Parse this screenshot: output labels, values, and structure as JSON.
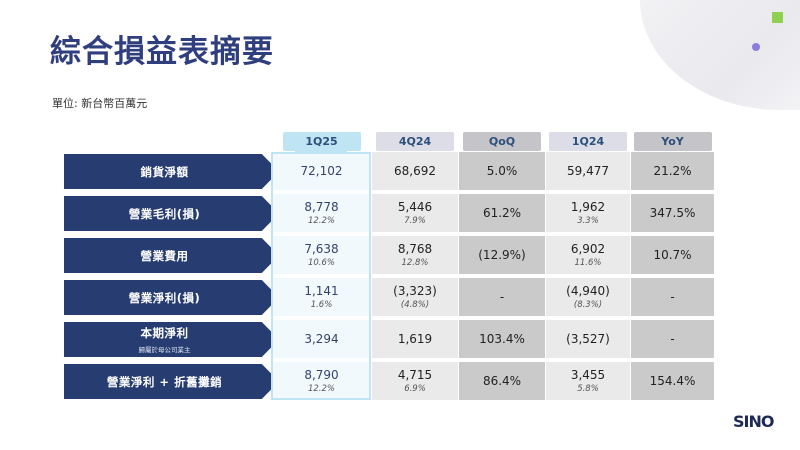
{
  "title": "綜合損益表摘要",
  "unit": "單位: 新台幣百萬元",
  "columns": [
    {
      "label": "1Q25",
      "kind": "cur"
    },
    {
      "label": "4Q24",
      "kind": "per"
    },
    {
      "label": "QoQ",
      "kind": "chg"
    },
    {
      "label": "1Q24",
      "kind": "per"
    },
    {
      "label": "YoY",
      "kind": "chg"
    }
  ],
  "rows": [
    {
      "label": "銷貨淨額",
      "sublabel": "",
      "cells": [
        {
          "v": "72,102",
          "p": ""
        },
        {
          "v": "68,692",
          "p": ""
        },
        {
          "v": "5.0%",
          "p": ""
        },
        {
          "v": "59,477",
          "p": ""
        },
        {
          "v": "21.2%",
          "p": ""
        }
      ]
    },
    {
      "label": "營業毛利(損)",
      "sublabel": "",
      "cells": [
        {
          "v": "8,778",
          "p": "12.2%"
        },
        {
          "v": "5,446",
          "p": "7.9%"
        },
        {
          "v": "61.2%",
          "p": ""
        },
        {
          "v": "1,962",
          "p": "3.3%"
        },
        {
          "v": "347.5%",
          "p": ""
        }
      ]
    },
    {
      "label": "營業費用",
      "sublabel": "",
      "cells": [
        {
          "v": "7,638",
          "p": "10.6%"
        },
        {
          "v": "8,768",
          "p": "12.8%"
        },
        {
          "v": "(12.9%)",
          "p": ""
        },
        {
          "v": "6,902",
          "p": "11.6%"
        },
        {
          "v": "10.7%",
          "p": ""
        }
      ]
    },
    {
      "label": "營業淨利(損)",
      "sublabel": "",
      "cells": [
        {
          "v": "1,141",
          "p": "1.6%"
        },
        {
          "v": "(3,323)",
          "p": "(4.8%)"
        },
        {
          "v": "-",
          "p": ""
        },
        {
          "v": "(4,940)",
          "p": "(8.3%)"
        },
        {
          "v": "-",
          "p": ""
        }
      ]
    },
    {
      "label": "本期淨利",
      "sublabel": "歸屬於母公司業主",
      "cells": [
        {
          "v": "3,294",
          "p": ""
        },
        {
          "v": "1,619",
          "p": ""
        },
        {
          "v": "103.4%",
          "p": ""
        },
        {
          "v": "(3,527)",
          "p": ""
        },
        {
          "v": "-",
          "p": ""
        }
      ]
    },
    {
      "label": "營業淨利 + 折舊攤銷",
      "sublabel": "",
      "cells": [
        {
          "v": "8,790",
          "p": "12.2%"
        },
        {
          "v": "4,715",
          "p": "6.9%"
        },
        {
          "v": "86.4%",
          "p": ""
        },
        {
          "v": "3,455",
          "p": "5.8%"
        },
        {
          "v": "154.4%",
          "p": ""
        }
      ]
    }
  ],
  "logo_text": "SINO"
}
